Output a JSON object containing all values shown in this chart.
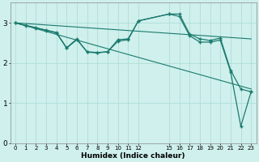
{
  "xlabel": "Humidex (Indice chaleur)",
  "background_color": "#cff0ec",
  "line_color": "#1a7a6e",
  "grid_color": "#b0ddd8",
  "xlim": [
    -0.5,
    23.5
  ],
  "ylim": [
    0,
    3.5
  ],
  "yticks": [
    0,
    1,
    2,
    3
  ],
  "xticks": [
    0,
    1,
    2,
    3,
    4,
    5,
    6,
    7,
    8,
    9,
    10,
    11,
    12,
    15,
    16,
    17,
    18,
    19,
    20,
    21,
    22,
    23
  ],
  "series": [
    {
      "x": [
        0,
        23
      ],
      "y": [
        3.0,
        2.6
      ],
      "marker": null,
      "linestyle": "-",
      "linewidth": 0.8
    },
    {
      "x": [
        0,
        23
      ],
      "y": [
        3.0,
        1.35
      ],
      "marker": null,
      "linestyle": "-",
      "linewidth": 0.8
    },
    {
      "x": [
        0,
        1,
        2,
        3,
        4,
        5,
        6,
        7,
        8,
        9,
        10,
        11,
        12,
        15,
        16,
        17,
        18,
        19,
        20,
        21,
        22,
        23
      ],
      "y": [
        3.0,
        2.94,
        2.88,
        2.82,
        2.76,
        2.38,
        2.6,
        2.27,
        2.25,
        2.28,
        2.58,
        2.6,
        3.05,
        3.22,
        3.22,
        2.72,
        2.6,
        2.56,
        2.62,
        1.82,
        1.35,
        1.28
      ],
      "marker": "+",
      "linestyle": "-",
      "linewidth": 0.9
    },
    {
      "x": [
        0,
        1,
        2,
        3,
        4,
        5,
        6,
        7,
        8,
        9,
        10,
        11,
        12,
        15,
        16,
        17,
        18,
        19,
        20,
        21,
        22,
        23
      ],
      "y": [
        3.0,
        2.93,
        2.87,
        2.81,
        2.75,
        2.37,
        2.58,
        2.28,
        2.26,
        2.28,
        2.54,
        2.58,
        3.05,
        3.22,
        3.16,
        2.68,
        2.52,
        2.52,
        2.57,
        1.78,
        0.42,
        1.28
      ],
      "marker": "+",
      "linestyle": "-",
      "linewidth": 0.9
    }
  ]
}
